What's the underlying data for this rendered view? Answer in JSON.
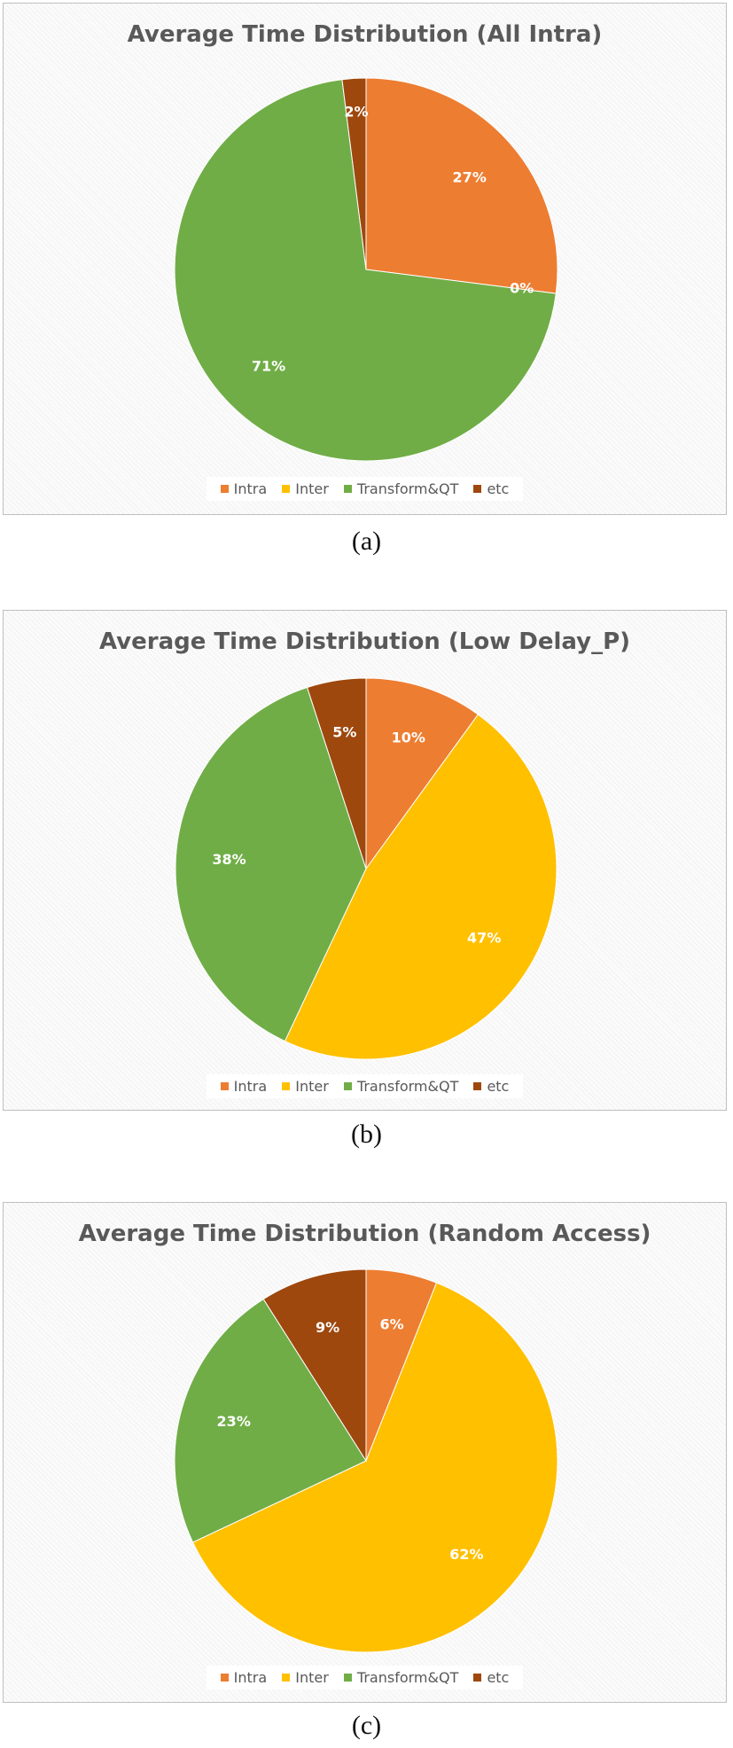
{
  "legend": [
    {
      "label": "Intra",
      "color": "#ED7D31"
    },
    {
      "label": "Inter",
      "color": "#FFC000"
    },
    {
      "label": "Transform&QT",
      "color": "#70AD47"
    },
    {
      "label": "etc",
      "color": "#9E480E"
    }
  ],
  "chart_data": [
    {
      "type": "pie",
      "title": "Average Time Distribution (All Intra)",
      "caption": "(a)",
      "categories": [
        "Intra",
        "Inter",
        "Transform&QT",
        "etc"
      ],
      "values": [
        27,
        0,
        71,
        2
      ],
      "labels": [
        "27%",
        "0%",
        "71%",
        "2%"
      ],
      "colors": [
        "#ED7D31",
        "#FFC000",
        "#70AD47",
        "#9E480E"
      ],
      "legend_position": "bottom"
    },
    {
      "type": "pie",
      "title": "Average Time Distribution (Low Delay_P)",
      "caption": "(b)",
      "categories": [
        "Intra",
        "Inter",
        "Transform&QT",
        "etc"
      ],
      "values": [
        10,
        47,
        38,
        5
      ],
      "labels": [
        "10%",
        "47%",
        "38%",
        "5%"
      ],
      "colors": [
        "#ED7D31",
        "#FFC000",
        "#70AD47",
        "#9E480E"
      ],
      "legend_position": "bottom"
    },
    {
      "type": "pie",
      "title": "Average Time Distribution (Random Access)",
      "caption": "(c)",
      "categories": [
        "Intra",
        "Inter",
        "Transform&QT",
        "etc"
      ],
      "values": [
        6,
        62,
        23,
        9
      ],
      "labels": [
        "6%",
        "62%",
        "23%",
        "9%"
      ],
      "colors": [
        "#ED7D31",
        "#FFC000",
        "#70AD47",
        "#9E480E"
      ],
      "legend_position": "bottom"
    }
  ]
}
